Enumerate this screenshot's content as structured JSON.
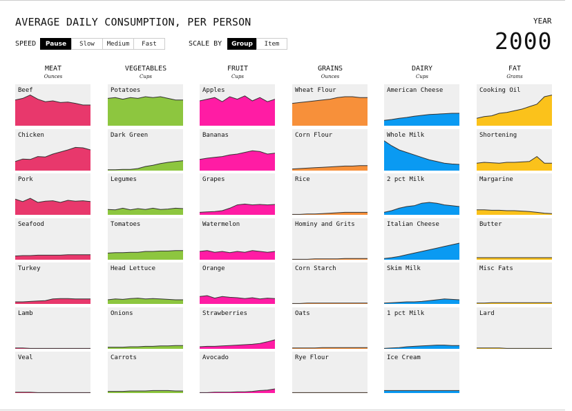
{
  "title": "AVERAGE DAILY CONSUMPTION, PER PERSON",
  "year_label": "YEAR",
  "year_value": "2000",
  "speed": {
    "label": "SPEED",
    "options": [
      "Pause",
      "Slow",
      "Medium",
      "Fast"
    ],
    "selected": "Pause"
  },
  "scale": {
    "label": "SCALE BY",
    "options": [
      "Group",
      "Item"
    ],
    "selected": "Group"
  },
  "chart_data": {
    "type": "area",
    "note": "Small multiples; relative area heights shown as 0-1 fraction of panel height",
    "groups": [
      {
        "name": "MEAT",
        "unit": "Ounces",
        "color": "#e8386c",
        "items": [
          {
            "name": "Beef",
            "values": [
              0.62,
              0.66,
              0.74,
              0.64,
              0.58,
              0.6,
              0.56,
              0.57,
              0.54,
              0.5,
              0.5
            ]
          },
          {
            "name": "Chicken",
            "values": [
              0.22,
              0.28,
              0.27,
              0.34,
              0.33,
              0.4,
              0.45,
              0.5,
              0.56,
              0.55,
              0.5
            ]
          },
          {
            "name": "Pork",
            "values": [
              0.38,
              0.32,
              0.4,
              0.3,
              0.33,
              0.34,
              0.3,
              0.35,
              0.33,
              0.34,
              0.32
            ]
          },
          {
            "name": "Seafood",
            "values": [
              0.09,
              0.1,
              0.1,
              0.11,
              0.11,
              0.11,
              0.11,
              0.12,
              0.12,
              0.12,
              0.12
            ]
          },
          {
            "name": "Turkey",
            "values": [
              0.05,
              0.05,
              0.06,
              0.07,
              0.08,
              0.12,
              0.13,
              0.13,
              0.12,
              0.12,
              0.12
            ]
          },
          {
            "name": "Lamb",
            "values": [
              0.02,
              0.02,
              0.01,
              0.01,
              0.01,
              0.01,
              0.01,
              0.01,
              0.01,
              0.01,
              0.01
            ]
          },
          {
            "name": "Veal",
            "values": [
              0.02,
              0.02,
              0.02,
              0.01,
              0.01,
              0.01,
              0.01,
              0.01,
              0.01,
              0.01,
              0.01
            ]
          }
        ]
      },
      {
        "name": "VEGETABLES",
        "unit": "Cups",
        "color": "#8dc63f",
        "items": [
          {
            "name": "Potatoes",
            "values": [
              0.66,
              0.68,
              0.64,
              0.68,
              0.66,
              0.7,
              0.68,
              0.7,
              0.66,
              0.62,
              0.62
            ]
          },
          {
            "name": "Dark Green",
            "values": [
              0.02,
              0.02,
              0.03,
              0.03,
              0.05,
              0.1,
              0.13,
              0.17,
              0.2,
              0.22,
              0.24
            ]
          },
          {
            "name": "Legumes",
            "values": [
              0.13,
              0.12,
              0.16,
              0.12,
              0.15,
              0.13,
              0.16,
              0.13,
              0.14,
              0.16,
              0.15
            ]
          },
          {
            "name": "Tomatoes",
            "values": [
              0.16,
              0.17,
              0.17,
              0.18,
              0.18,
              0.2,
              0.2,
              0.21,
              0.21,
              0.22,
              0.22
            ]
          },
          {
            "name": "Head Lettuce",
            "values": [
              0.1,
              0.12,
              0.11,
              0.13,
              0.14,
              0.12,
              0.13,
              0.12,
              0.11,
              0.1,
              0.1
            ]
          },
          {
            "name": "Onions",
            "values": [
              0.04,
              0.04,
              0.04,
              0.05,
              0.05,
              0.06,
              0.06,
              0.07,
              0.07,
              0.08,
              0.08
            ]
          },
          {
            "name": "Carrots",
            "values": [
              0.04,
              0.04,
              0.04,
              0.05,
              0.05,
              0.05,
              0.06,
              0.06,
              0.06,
              0.05,
              0.05
            ]
          }
        ]
      },
      {
        "name": "FRUIT",
        "unit": "Cups",
        "color": "#ff1ca4",
        "items": [
          {
            "name": "Apples",
            "values": [
              0.6,
              0.64,
              0.68,
              0.58,
              0.7,
              0.64,
              0.72,
              0.6,
              0.68,
              0.58,
              0.64
            ]
          },
          {
            "name": "Bananas",
            "values": [
              0.27,
              0.3,
              0.32,
              0.34,
              0.38,
              0.4,
              0.44,
              0.48,
              0.46,
              0.4,
              0.42
            ]
          },
          {
            "name": "Grapes",
            "values": [
              0.06,
              0.07,
              0.08,
              0.1,
              0.16,
              0.24,
              0.26,
              0.24,
              0.25,
              0.24,
              0.25
            ]
          },
          {
            "name": "Watermelon",
            "values": [
              0.2,
              0.22,
              0.18,
              0.2,
              0.17,
              0.2,
              0.18,
              0.22,
              0.2,
              0.18,
              0.2
            ]
          },
          {
            "name": "Orange",
            "values": [
              0.18,
              0.2,
              0.14,
              0.18,
              0.16,
              0.15,
              0.13,
              0.15,
              0.12,
              0.14,
              0.13
            ]
          },
          {
            "name": "Strawberries",
            "values": [
              0.05,
              0.06,
              0.06,
              0.07,
              0.08,
              0.09,
              0.1,
              0.11,
              0.13,
              0.17,
              0.22
            ]
          },
          {
            "name": "Avocado",
            "values": [
              0.01,
              0.01,
              0.02,
              0.02,
              0.02,
              0.03,
              0.03,
              0.04,
              0.06,
              0.07,
              0.1
            ]
          }
        ]
      },
      {
        "name": "GRAINS",
        "unit": "Ounces",
        "color": "#f7903a",
        "items": [
          {
            "name": "Wheat Flour",
            "values": [
              0.54,
              0.56,
              0.58,
              0.6,
              0.62,
              0.64,
              0.68,
              0.7,
              0.7,
              0.68,
              0.68
            ]
          },
          {
            "name": "Corn Flour",
            "values": [
              0.04,
              0.05,
              0.06,
              0.07,
              0.08,
              0.09,
              0.1,
              0.11,
              0.11,
              0.12,
              0.12
            ]
          },
          {
            "name": "Rice",
            "values": [
              0.01,
              0.01,
              0.02,
              0.02,
              0.03,
              0.04,
              0.05,
              0.06,
              0.06,
              0.06,
              0.06
            ]
          },
          {
            "name": "Hominy and Grits",
            "values": [
              0.01,
              0.01,
              0.01,
              0.02,
              0.02,
              0.02,
              0.02,
              0.03,
              0.03,
              0.03,
              0.03
            ]
          },
          {
            "name": "Corn Starch",
            "values": [
              0.01,
              0.01,
              0.02,
              0.02,
              0.02,
              0.02,
              0.02,
              0.02,
              0.02,
              0.02,
              0.02
            ]
          },
          {
            "name": "Oats",
            "values": [
              0.02,
              0.02,
              0.02,
              0.02,
              0.03,
              0.03,
              0.03,
              0.03,
              0.03,
              0.03,
              0.03
            ]
          },
          {
            "name": "Rye Flour",
            "values": [
              0.01,
              0.01,
              0.01,
              0.01,
              0.01,
              0.01,
              0.01,
              0.01,
              0.01,
              0.01,
              0.01
            ]
          }
        ]
      },
      {
        "name": "DAIRY",
        "unit": "Cups",
        "color": "#0a9af2",
        "items": [
          {
            "name": "American Cheese",
            "values": [
              0.13,
              0.15,
              0.18,
              0.2,
              0.23,
              0.25,
              0.27,
              0.28,
              0.29,
              0.3,
              0.3
            ]
          },
          {
            "name": "Whole Milk",
            "values": [
              0.72,
              0.6,
              0.5,
              0.44,
              0.38,
              0.32,
              0.26,
              0.22,
              0.18,
              0.16,
              0.15
            ]
          },
          {
            "name": "2 pct Milk",
            "values": [
              0.06,
              0.1,
              0.16,
              0.2,
              0.22,
              0.28,
              0.3,
              0.28,
              0.24,
              0.22,
              0.2
            ]
          },
          {
            "name": "Italian Cheese",
            "values": [
              0.03,
              0.05,
              0.08,
              0.12,
              0.16,
              0.2,
              0.24,
              0.28,
              0.32,
              0.36,
              0.4
            ]
          },
          {
            "name": "Skim Milk",
            "values": [
              0.02,
              0.03,
              0.04,
              0.05,
              0.05,
              0.06,
              0.08,
              0.1,
              0.12,
              0.11,
              0.1
            ]
          },
          {
            "name": "1 pct Milk",
            "values": [
              0.01,
              0.02,
              0.03,
              0.05,
              0.06,
              0.07,
              0.08,
              0.09,
              0.09,
              0.08,
              0.08
            ]
          },
          {
            "name": "Ice Cream",
            "values": [
              0.06,
              0.06,
              0.06,
              0.06,
              0.06,
              0.06,
              0.06,
              0.06,
              0.06,
              0.06,
              0.06
            ]
          }
        ]
      },
      {
        "name": "FAT",
        "unit": "Grams",
        "color": "#fbc21b",
        "items": [
          {
            "name": "Cooking Oil",
            "values": [
              0.18,
              0.22,
              0.24,
              0.3,
              0.32,
              0.36,
              0.4,
              0.46,
              0.52,
              0.7,
              0.74
            ]
          },
          {
            "name": "Shortening",
            "values": [
              0.18,
              0.2,
              0.19,
              0.18,
              0.2,
              0.2,
              0.21,
              0.22,
              0.34,
              0.18,
              0.18
            ]
          },
          {
            "name": "Margarine",
            "values": [
              0.12,
              0.12,
              0.11,
              0.11,
              0.1,
              0.1,
              0.09,
              0.08,
              0.06,
              0.04,
              0.03
            ]
          },
          {
            "name": "Butter",
            "values": [
              0.05,
              0.05,
              0.05,
              0.05,
              0.05,
              0.05,
              0.05,
              0.05,
              0.05,
              0.05,
              0.05
            ]
          },
          {
            "name": "Misc Fats",
            "values": [
              0.02,
              0.02,
              0.03,
              0.03,
              0.03,
              0.03,
              0.03,
              0.03,
              0.03,
              0.03,
              0.03
            ]
          },
          {
            "name": "Lard",
            "values": [
              0.02,
              0.02,
              0.02,
              0.02,
              0.01,
              0.01,
              0.01,
              0.01,
              0.01,
              0.01,
              0.01
            ]
          }
        ]
      }
    ]
  }
}
